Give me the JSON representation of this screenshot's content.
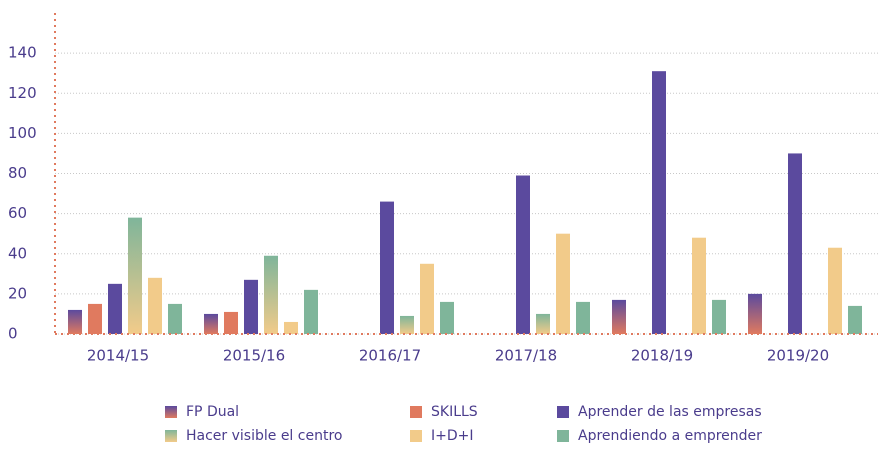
{
  "chart_data": {
    "type": "bar",
    "categories": [
      "2014/15",
      "2015/16",
      "2016/17",
      "2017/18",
      "2018/19",
      "2019/20"
    ],
    "series": [
      {
        "name": "FP Dual",
        "color": [
          "#e07a5f",
          "#5b4a9e"
        ],
        "values": [
          12,
          10,
          null,
          null,
          17,
          20
        ]
      },
      {
        "name": "SKILLS",
        "color": "#e07a5f",
        "values": [
          15,
          11,
          null,
          null,
          null,
          null
        ]
      },
      {
        "name": "Aprender de las empresas",
        "color": "#5b4a9e",
        "values": [
          25,
          27,
          66,
          79,
          131,
          90
        ]
      },
      {
        "name": "Hacer visible el centro",
        "color": [
          "#f2cb8a",
          "#7fb59a"
        ],
        "values": [
          58,
          39,
          9,
          10,
          null,
          null
        ]
      },
      {
        "name": "I+D+I",
        "color": "#f2cb8a",
        "values": [
          28,
          6,
          35,
          50,
          48,
          43
        ]
      },
      {
        "name": "Aprendiendo a emprender",
        "color": "#7fb59a",
        "values": [
          15,
          22,
          16,
          16,
          17,
          14
        ]
      }
    ],
    "ylim": [
      0,
      160
    ],
    "yticks": [
      0,
      20,
      40,
      60,
      80,
      100,
      120,
      140
    ],
    "grid": true
  }
}
